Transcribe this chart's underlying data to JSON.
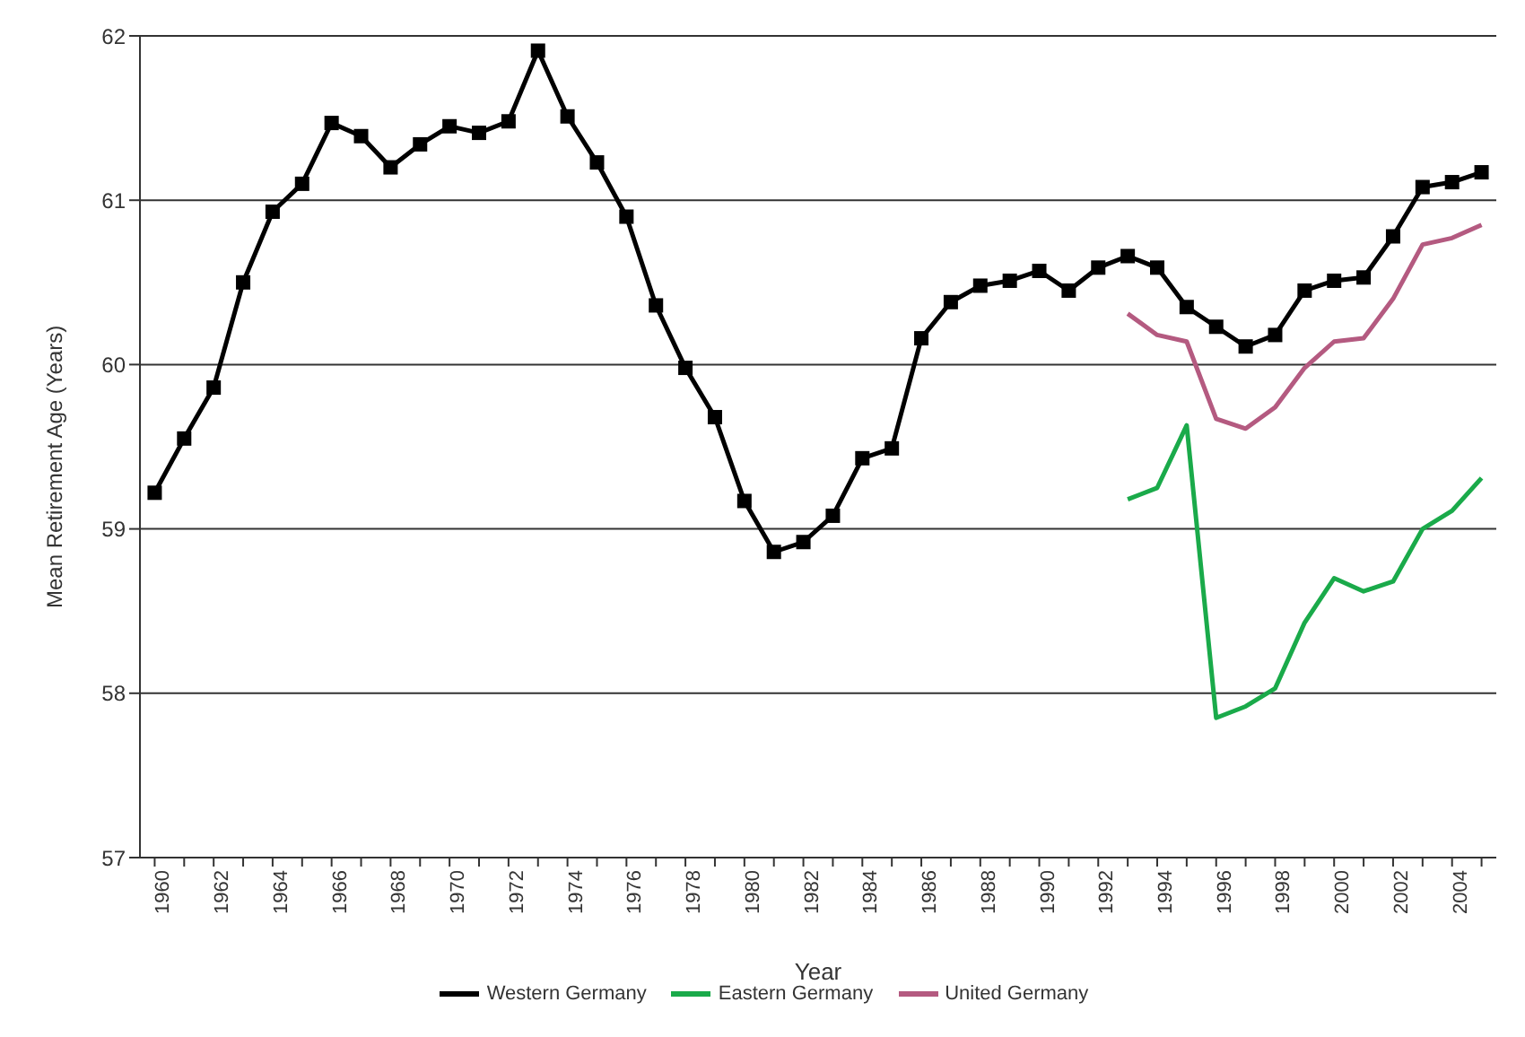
{
  "chart_data": {
    "type": "line",
    "xlabel": "Year",
    "ylabel": "Mean Retirement Age (Years)",
    "x": [
      1960,
      1961,
      1962,
      1963,
      1964,
      1965,
      1966,
      1967,
      1968,
      1969,
      1970,
      1971,
      1972,
      1973,
      1974,
      1975,
      1976,
      1977,
      1978,
      1979,
      1980,
      1981,
      1982,
      1983,
      1984,
      1985,
      1986,
      1987,
      1988,
      1989,
      1990,
      1991,
      1992,
      1993,
      1994,
      1995,
      1996,
      1997,
      1998,
      1999,
      2000,
      2001,
      2002,
      2003,
      2004,
      2005
    ],
    "series": [
      {
        "name": "Western Germany",
        "color": "#000000",
        "marker": "square",
        "values": [
          59.22,
          59.55,
          59.86,
          60.5,
          60.93,
          61.1,
          61.47,
          61.39,
          61.2,
          61.34,
          61.45,
          61.41,
          61.48,
          61.91,
          61.51,
          61.23,
          60.9,
          60.36,
          59.98,
          59.68,
          59.17,
          58.86,
          58.92,
          59.08,
          59.43,
          59.49,
          60.16,
          60.38,
          60.48,
          60.51,
          60.57,
          60.45,
          60.59,
          60.66,
          60.59,
          60.35,
          60.23,
          60.11,
          60.18,
          60.45,
          60.51,
          60.53,
          60.78,
          61.08,
          61.11,
          61.17
        ]
      },
      {
        "name": "Eastern Germany",
        "color": "#1aaa4a",
        "marker": "none",
        "x": [
          1993,
          1994,
          1995,
          1996,
          1997,
          1998,
          1999,
          2000,
          2001,
          2002,
          2003,
          2004,
          2005
        ],
        "values": [
          59.18,
          59.25,
          59.63,
          57.85,
          57.92,
          58.03,
          58.43,
          58.7,
          58.62,
          58.68,
          59.0,
          59.11,
          59.31
        ]
      },
      {
        "name": "United Germany",
        "color": "#b45a80",
        "marker": "none",
        "x": [
          1993,
          1994,
          1995,
          1996,
          1997,
          1998,
          1999,
          2000,
          2001,
          2002,
          2003,
          2004,
          2005
        ],
        "values": [
          60.31,
          60.18,
          60.14,
          59.67,
          59.61,
          59.74,
          59.98,
          60.14,
          60.16,
          60.4,
          60.73,
          60.77,
          60.85
        ]
      }
    ],
    "xlim": [
      1959.5,
      2005.5
    ],
    "xticks": [
      1960,
      {
        "value": 1961,
        "label": null
      },
      1962,
      {
        "value": 1963,
        "label": null
      },
      1964,
      {
        "value": 1965,
        "label": null
      },
      1966,
      {
        "value": 1967,
        "label": null
      },
      1968,
      {
        "value": 1969,
        "label": null
      },
      1970,
      {
        "value": 1971,
        "label": null
      },
      1972,
      {
        "value": 1973,
        "label": null
      },
      1974,
      {
        "value": 1975,
        "label": null
      },
      1976,
      {
        "value": 1977,
        "label": null
      },
      1978,
      {
        "value": 1979,
        "label": null
      },
      1980,
      {
        "value": 1981,
        "label": null
      },
      1982,
      {
        "value": 1983,
        "label": null
      },
      1984,
      {
        "value": 1985,
        "label": null
      },
      1986,
      {
        "value": 1987,
        "label": null
      },
      1988,
      {
        "value": 1989,
        "label": null
      },
      1990,
      {
        "value": 1991,
        "label": null
      },
      1992,
      {
        "value": 1993,
        "label": null
      },
      1994,
      {
        "value": 1995,
        "label": null
      },
      1996,
      {
        "value": 1997,
        "label": null
      },
      1998,
      {
        "value": 1999,
        "label": null
      },
      2000,
      {
        "value": 2001,
        "label": null
      },
      2002,
      {
        "value": 2003,
        "label": null
      },
      2004,
      {
        "value": 2005,
        "label": null
      }
    ],
    "ylim": [
      57,
      62
    ],
    "yticks": [
      57,
      58,
      59,
      60,
      61,
      62
    ],
    "grid": "y",
    "legend": "bottom",
    "line_style": "solid"
  }
}
